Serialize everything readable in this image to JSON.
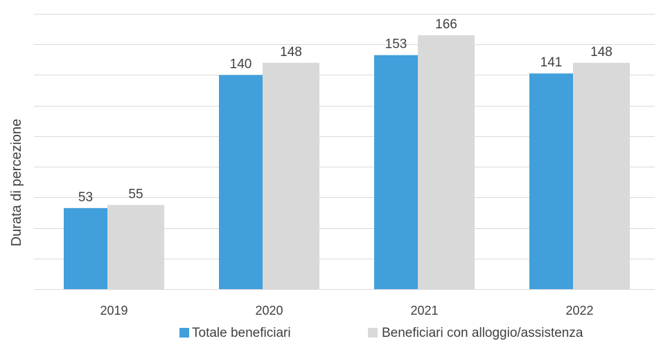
{
  "chart_data": {
    "type": "bar",
    "title": "",
    "xlabel": "",
    "ylabel": "Durata di percezione",
    "categories": [
      "2019",
      "2020",
      "2021",
      "2022"
    ],
    "series": [
      {
        "name": "Totale beneficiari",
        "values": [
          53,
          140,
          153,
          141
        ],
        "color": "#419fdc"
      },
      {
        "name": "Beneficiari con alloggio/assistenza",
        "values": [
          55,
          148,
          166,
          148
        ],
        "color": "#d9d9d9"
      }
    ],
    "ylim": [
      0,
      180
    ],
    "ytick_step": 20,
    "grid": true,
    "data_labels": true,
    "legend_position": "bottom"
  }
}
